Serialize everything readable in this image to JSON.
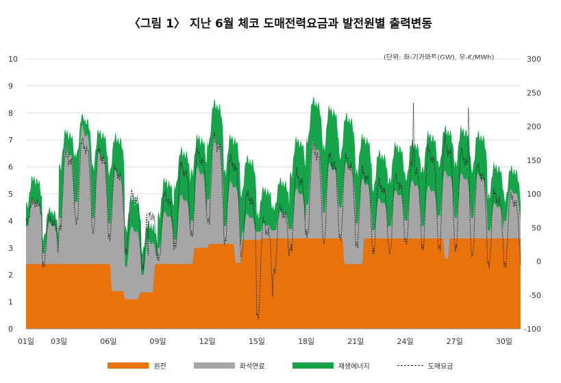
{
  "chart_data": {
    "type": "area",
    "title": "〈그림 1〉 지난 6월 체코 도매전력요금과 발전원별 출력변동",
    "unit_note": "(단위: 좌-기가와트(GW), 우-€/MWh)",
    "x_ticks": [
      "01일",
      "03일",
      "06일",
      "09일",
      "12일",
      "15일",
      "18일",
      "21일",
      "24일",
      "27일",
      "30일"
    ],
    "x_tick_days": [
      1,
      3,
      6,
      9,
      12,
      15,
      18,
      21,
      24,
      27,
      30
    ],
    "xlim": [
      1,
      31
    ],
    "y_left": {
      "ticks": [
        "0",
        "1",
        "2",
        "3",
        "4",
        "5",
        "6",
        "7",
        "8",
        "9",
        "10"
      ],
      "lim": [
        0,
        10
      ]
    },
    "y_right": {
      "ticks": [
        "-100",
        "-50",
        "0",
        "50",
        "100",
        "150",
        "200",
        "250",
        "300"
      ],
      "lim": [
        -100,
        300
      ]
    },
    "grid": "horizontal",
    "legend_position": "bottom",
    "series": [
      {
        "name": "원전",
        "axis": "left",
        "color": "#e8720c",
        "points": [
          [
            1,
            2.4
          ],
          [
            5.5,
            2.4
          ],
          [
            6.1,
            2.4
          ],
          [
            6.2,
            1.4
          ],
          [
            6.9,
            1.4
          ],
          [
            7.0,
            1.1
          ],
          [
            7.8,
            1.1
          ],
          [
            7.9,
            1.35
          ],
          [
            8.7,
            1.35
          ],
          [
            8.8,
            2.4
          ],
          [
            11.1,
            2.4
          ],
          [
            11.2,
            3.0
          ],
          [
            12.0,
            3.0
          ],
          [
            12.1,
            3.15
          ],
          [
            13.6,
            3.15
          ],
          [
            13.7,
            2.45
          ],
          [
            14.0,
            2.45
          ],
          [
            14.1,
            3.3
          ],
          [
            15.2,
            3.3
          ],
          [
            15.3,
            3.35
          ],
          [
            20.2,
            3.35
          ],
          [
            20.3,
            2.4
          ],
          [
            21.4,
            2.4
          ],
          [
            21.5,
            3.35
          ],
          [
            26.3,
            3.35
          ],
          [
            26.4,
            2.6
          ],
          [
            26.6,
            2.6
          ],
          [
            26.7,
            3.35
          ],
          [
            31,
            3.35
          ]
        ]
      },
      {
        "name": "화석연료",
        "axis": "left",
        "color": "#a6a6a6",
        "daily_total": [
          4.4,
          3.5,
          5.7,
          6.4,
          5.6,
          5.1,
          3.2,
          2.8,
          3.8,
          4.3,
          5.2,
          6.2,
          4.8,
          3.8,
          3.6,
          4.0,
          4.6,
          6.0,
          5.4,
          5.5,
          4.9,
          4.3,
          4.6,
          4.9,
          4.7,
          5.2,
          5.1,
          5.1,
          4.2,
          4.7,
          4.7
        ],
        "daily_amplitude": [
          0.6,
          0.7,
          1.6,
          1.7,
          1.5,
          1.2,
          0.9,
          0.8,
          0.8,
          1.0,
          1.2,
          1.4,
          1.0,
          0.7,
          0.5,
          0.6,
          0.9,
          1.4,
          1.1,
          1.0,
          1.0,
          0.8,
          0.8,
          0.9,
          0.9,
          1.0,
          1.0,
          1.0,
          0.7,
          0.7,
          0.7
        ]
      },
      {
        "name": "재생에너지",
        "axis": "left",
        "color": "#16a34a",
        "daily_total": [
          5.2,
          4.0,
          6.8,
          7.3,
          6.8,
          6.6,
          4.4,
          3.5,
          5.0,
          6.1,
          6.6,
          7.8,
          6.6,
          5.8,
          4.8,
          5.1,
          6.5,
          7.9,
          7.6,
          7.3,
          6.6,
          6.0,
          6.3,
          6.4,
          6.7,
          6.9,
          6.9,
          6.7,
          5.6,
          5.5,
          5.5
        ],
        "daily_amplitude": [
          0.6,
          0.6,
          0.8,
          0.8,
          0.8,
          0.8,
          0.7,
          0.6,
          0.8,
          0.8,
          0.8,
          0.9,
          0.8,
          0.8,
          0.6,
          0.6,
          0.8,
          0.9,
          0.9,
          0.9,
          0.8,
          0.8,
          0.8,
          0.8,
          0.8,
          0.8,
          0.8,
          0.8,
          0.7,
          0.7,
          0.7
        ]
      },
      {
        "name": "도매요금",
        "axis": "right",
        "color": "#222222",
        "style": "dashed",
        "daily_peak": [
          95,
          80,
          185,
          205,
          190,
          160,
          120,
          95,
          120,
          170,
          190,
          210,
          180,
          120,
          90,
          100,
          155,
          200,
          185,
          180,
          160,
          140,
          150,
          170,
          200,
          215,
          195,
          170,
          125,
          120,
          110
        ],
        "daily_low": [
          60,
          -5,
          50,
          60,
          45,
          35,
          15,
          -10,
          5,
          25,
          40,
          60,
          30,
          10,
          -80,
          -15,
          20,
          40,
          30,
          35,
          25,
          15,
          15,
          30,
          20,
          20,
          20,
          10,
          -5,
          -5,
          -5
        ],
        "extremes": [
          [
            15.0,
            -80
          ],
          [
            27.85,
            270
          ],
          [
            8.4,
            -20
          ],
          [
            24.5,
            235
          ]
        ]
      }
    ]
  }
}
